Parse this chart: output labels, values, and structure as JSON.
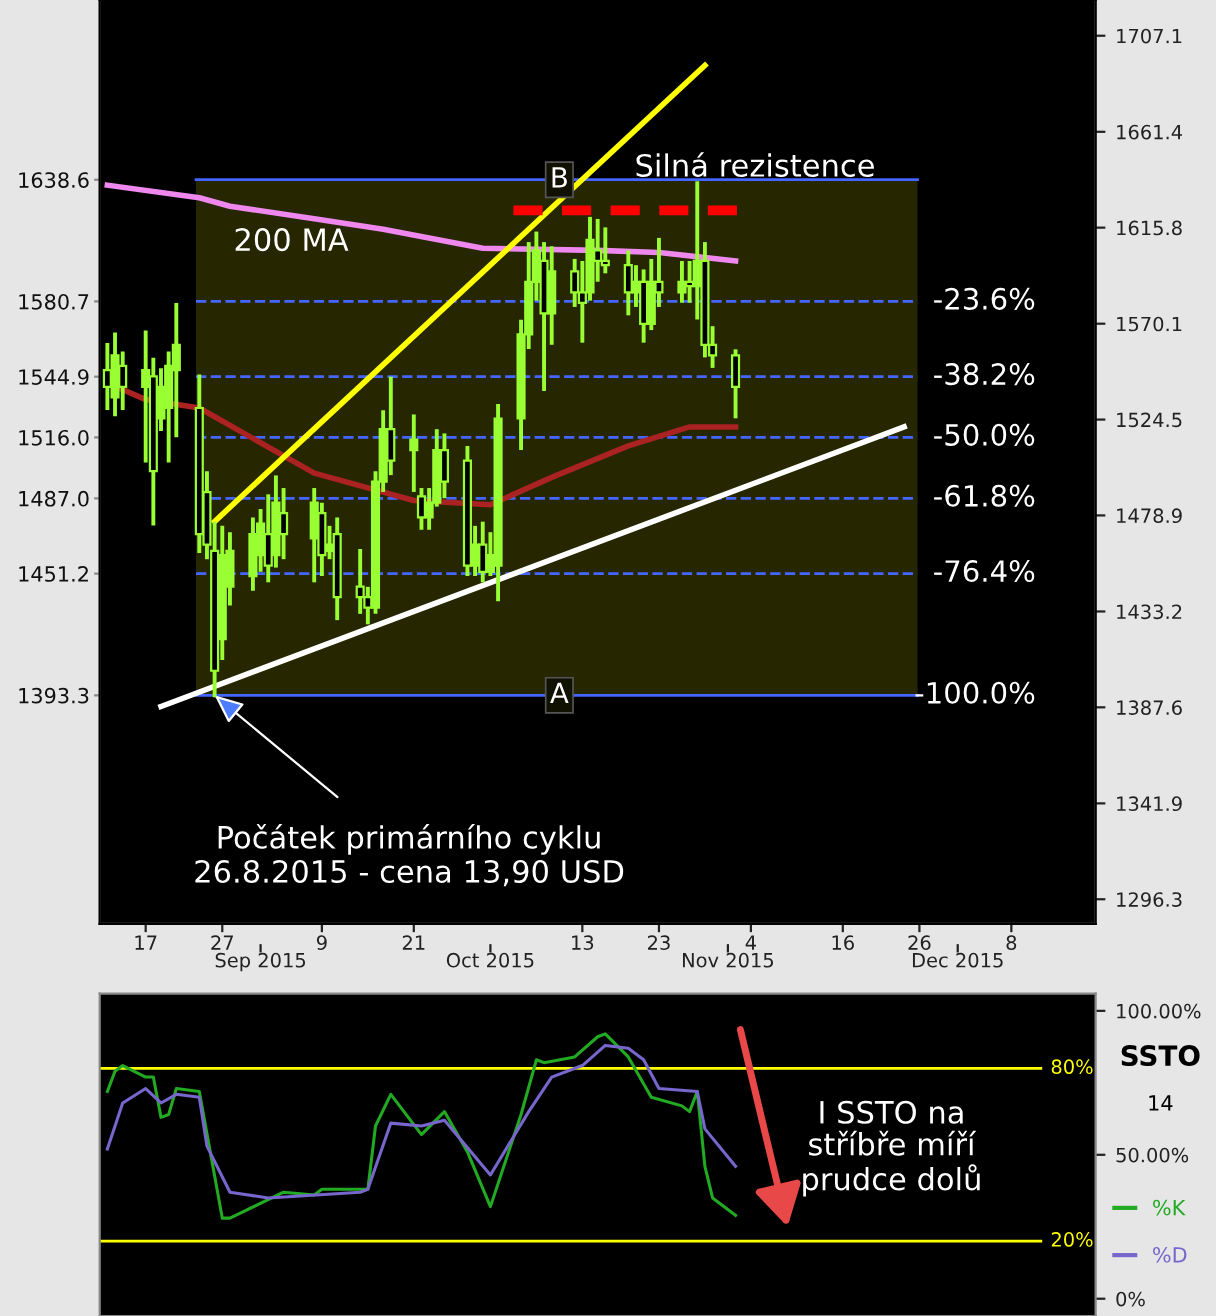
{
  "chart_data": [
    {
      "type": "candlestick",
      "color": "#99ff33",
      "x": [
        "2015-08-12",
        "2015-08-13",
        "2015-08-14",
        "2015-08-17",
        "2015-08-18",
        "2015-08-19",
        "2015-08-20",
        "2015-08-21",
        "2015-08-24",
        "2015-08-25",
        "2015-08-26",
        "2015-08-27",
        "2015-08-28",
        "2015-08-31",
        "2015-09-01",
        "2015-09-02",
        "2015-09-03",
        "2015-09-04",
        "2015-09-08",
        "2015-09-09",
        "2015-09-10",
        "2015-09-11",
        "2015-09-14",
        "2015-09-15",
        "2015-09-16",
        "2015-09-17",
        "2015-09-18",
        "2015-09-21",
        "2015-09-22",
        "2015-09-23",
        "2015-09-24",
        "2015-09-25",
        "2015-09-28",
        "2015-09-29",
        "2015-09-30",
        "2015-10-01",
        "2015-10-02",
        "2015-10-05",
        "2015-10-06",
        "2015-10-07",
        "2015-10-08",
        "2015-10-09",
        "2015-10-12",
        "2015-10-13",
        "2015-10-14",
        "2015-10-15",
        "2015-10-16",
        "2015-10-19",
        "2015-10-20",
        "2015-10-21",
        "2015-10-22",
        "2015-10-23",
        "2015-10-26",
        "2015-10-27",
        "2015-10-28",
        "2015-10-29",
        "2015-10-30",
        "2015-11-02"
      ],
      "ohlc": [
        [
          1548,
          1560,
          1530,
          1540
        ],
        [
          1535,
          1565,
          1527,
          1555
        ],
        [
          1550,
          1556,
          1530,
          1540
        ],
        [
          1540,
          1566,
          1505,
          1548
        ],
        [
          1545,
          1553,
          1475,
          1500
        ],
        [
          1525,
          1548,
          1520,
          1540
        ],
        [
          1530,
          1556,
          1505,
          1550
        ],
        [
          1548,
          1579,
          1517,
          1560
        ],
        [
          1530,
          1545,
          1462,
          1470
        ],
        [
          1490,
          1499,
          1459,
          1465
        ],
        [
          1462,
          1475,
          1393.3,
          1405
        ],
        [
          1420,
          1473,
          1411,
          1460
        ],
        [
          1445,
          1470,
          1437,
          1462
        ],
        [
          1450,
          1477,
          1444,
          1470
        ],
        [
          1460,
          1481,
          1453,
          1475
        ],
        [
          1470,
          1488,
          1448,
          1455
        ],
        [
          1460,
          1497,
          1455,
          1485
        ],
        [
          1480,
          1491,
          1459,
          1470
        ],
        [
          1468,
          1491,
          1448,
          1485
        ],
        [
          1480,
          1484,
          1451,
          1460
        ],
        [
          1462,
          1473,
          1459,
          1465
        ],
        [
          1470,
          1477,
          1430,
          1440
        ],
        [
          1445,
          1462,
          1433,
          1440
        ],
        [
          1440,
          1444,
          1428,
          1435
        ],
        [
          1435,
          1499,
          1433,
          1495
        ],
        [
          1495,
          1528,
          1491,
          1520
        ],
        [
          1520,
          1544,
          1499,
          1505
        ],
        [
          1510,
          1526,
          1491,
          1515
        ],
        [
          1488,
          1491,
          1473,
          1478
        ],
        [
          1478,
          1491,
          1473,
          1485
        ],
        [
          1485,
          1519,
          1484,
          1510
        ],
        [
          1510,
          1517,
          1488,
          1495
        ],
        [
          1505,
          1511,
          1451,
          1455
        ],
        [
          1455,
          1473,
          1451,
          1465
        ],
        [
          1465,
          1475,
          1448,
          1452
        ],
        [
          1452,
          1470,
          1451,
          1460
        ],
        [
          1455,
          1531,
          1439,
          1525
        ],
        [
          1525,
          1571,
          1511,
          1565
        ],
        [
          1565,
          1608,
          1559,
          1590
        ],
        [
          1590,
          1613,
          1582,
          1605
        ],
        [
          1600,
          1608,
          1539,
          1575
        ],
        [
          1575,
          1606,
          1561,
          1595
        ],
        [
          1595,
          1600,
          1579,
          1585
        ],
        [
          1585,
          1599,
          1562,
          1580
        ],
        [
          1585,
          1620,
          1582,
          1610
        ],
        [
          1605,
          1619,
          1591,
          1600
        ],
        [
          1600,
          1615,
          1595,
          1598
        ],
        [
          1598,
          1604,
          1575,
          1585
        ],
        [
          1585,
          1597,
          1579,
          1590
        ],
        [
          1590,
          1595,
          1562,
          1570
        ],
        [
          1570,
          1600,
          1568,
          1590
        ],
        [
          1590,
          1610,
          1579,
          1585
        ],
        [
          1585,
          1599,
          1581,
          1590
        ],
        [
          1590,
          1599,
          1581,
          1588
        ],
        [
          1588,
          1637,
          1573,
          1600
        ],
        [
          1600,
          1608,
          1555,
          1560
        ],
        [
          1560,
          1568,
          1550,
          1555
        ],
        [
          1555,
          1557,
          1526,
          1540
        ]
      ],
      "series": [
        {
          "name": "200 MA",
          "type": "line",
          "color": "#ee88ee",
          "x": [
            "2015-08-12",
            "2015-08-24",
            "2015-08-28",
            "2015-09-08",
            "2015-09-17",
            "2015-09-30",
            "2015-10-15",
            "2015-10-23",
            "2015-11-02"
          ],
          "values": [
            1636,
            1630,
            1626,
            1620,
            1615,
            1606,
            1605,
            1604,
            1600
          ]
        },
        {
          "type": "line",
          "color": "#aa2222",
          "x": [
            "2015-08-12",
            "2015-08-17",
            "2015-08-24",
            "2015-09-08",
            "2015-09-21",
            "2015-10-01",
            "2015-10-09",
            "2015-10-19",
            "2015-10-27",
            "2015-11-02"
          ],
          "values": [
            1542,
            1534,
            1530,
            1499,
            1486,
            1484,
            1497,
            1512,
            1521,
            1521
          ]
        },
        {
          "type": "line",
          "color": "#ffff00",
          "x": [
            "2015-08-26",
            "2015-10-29"
          ],
          "values": [
            1476,
            1693
          ]
        },
        {
          "type": "line",
          "color": "#ffffff",
          "x": [
            "2015-08-19",
            "2015-11-24"
          ],
          "values": [
            1388,
            1521
          ]
        },
        {
          "type": "line",
          "color": "#ff0000",
          "line_style": "dashed",
          "x": [
            "2015-10-04",
            "2015-11-03"
          ],
          "values": [
            1624,
            1624
          ]
        }
      ],
      "xlim": [
        "2015-08-11",
        "2015-12-19"
      ],
      "xticks": [
        {
          "value": "2015-08-17",
          "label": "17"
        },
        {
          "value": "2015-08-27",
          "label": "27"
        },
        {
          "value": "2015-09-09",
          "label": "9"
        },
        {
          "value": "2015-09-21",
          "label": "21"
        },
        {
          "value": "2015-10-13",
          "label": "13"
        },
        {
          "value": "2015-10-23",
          "label": "23"
        },
        {
          "value": "2015-11-04",
          "label": "4"
        },
        {
          "value": "2015-11-16",
          "label": "16"
        },
        {
          "value": "2015-11-26",
          "label": "26"
        },
        {
          "value": "2015-12-08",
          "label": "8"
        }
      ],
      "x2lim": [
        "2015-08-11",
        "2015-12-19"
      ],
      "x2ticks": [
        {
          "value": "2015-09-01",
          "label": "Sep 2015"
        },
        {
          "value": "2015-10-01",
          "label": "Oct 2015"
        },
        {
          "value": "2015-11-01",
          "label": "Nov 2015"
        },
        {
          "value": "2015-12-01",
          "label": "Dec 2015"
        }
      ],
      "ylim": [
        1284.6,
        1724.1
      ],
      "yticks": [
        {
          "value": 1393.3,
          "label": "1393.3"
        },
        {
          "value": 1451.2,
          "label": "1451.2"
        },
        {
          "value": 1487.0,
          "label": "1487.0"
        },
        {
          "value": 1516.0,
          "label": "1516.0"
        },
        {
          "value": 1544.9,
          "label": "1544.9"
        },
        {
          "value": 1580.7,
          "label": "1580.7"
        },
        {
          "value": 1638.6,
          "label": "1638.6"
        }
      ],
      "y2lim": [
        1284.6,
        1724.1
      ],
      "y2ticks": [
        1296.3,
        1341.9,
        1387.6,
        1433.2,
        1478.9,
        1524.5,
        1570.1,
        1615.8,
        1661.4,
        1707.1
      ],
      "bands": [
        {
          "axis": "y",
          "from": 1393.3,
          "to": 1638.6,
          "color": "#262600"
        }
      ],
      "ref_lines": [
        {
          "axis": "y",
          "value": 1638.6,
          "color": "#4466ff",
          "line_style": "solid"
        },
        {
          "axis": "y",
          "value": 1580.7,
          "color": "#4466ff",
          "line_style": "dashed"
        },
        {
          "axis": "y",
          "value": 1544.9,
          "color": "#4466ff",
          "line_style": "dashed"
        },
        {
          "axis": "y",
          "value": 1516.0,
          "color": "#4466ff",
          "line_style": "dashed"
        },
        {
          "axis": "y",
          "value": 1487.0,
          "color": "#4466ff",
          "line_style": "dashed"
        },
        {
          "axis": "y",
          "value": 1451.2,
          "color": "#4466ff",
          "line_style": "dashed"
        },
        {
          "axis": "y",
          "value": 1393.3,
          "color": "#4466ff",
          "line_style": "solid"
        }
      ],
      "annotations": [
        {
          "text": "B",
          "x": "2015-10-10",
          "y": 1638.6
        },
        {
          "text": "A",
          "x": "2015-10-10",
          "y": 1393.3
        },
        {
          "text": "Počátek primárního cyklu\n26.8.2015 - cena 13,90 USD",
          "x": "2015-08-26",
          "y": 1393.3
        },
        "-23.6%",
        "-38.2%",
        "-50.0%",
        "-61.8%",
        "-76.4%",
        "-100.0%",
        "Silná rezistence"
      ]
    },
    {
      "type": "line",
      "title": "SSTO",
      "subtitle": "14",
      "legend": "right",
      "tick_labels": "y",
      "series": [
        {
          "name": "%K",
          "color": "#22aa22",
          "x": [
            "2015-08-12",
            "2015-08-13",
            "2015-08-14",
            "2015-08-17",
            "2015-08-18",
            "2015-08-19",
            "2015-08-20",
            "2015-08-21",
            "2015-08-24",
            "2015-08-27",
            "2015-08-28",
            "2015-09-04",
            "2015-09-08",
            "2015-09-09",
            "2015-09-14",
            "2015-09-15",
            "2015-09-16",
            "2015-09-18",
            "2015-09-22",
            "2015-09-25",
            "2015-09-28",
            "2015-10-01",
            "2015-10-05",
            "2015-10-07",
            "2015-10-08",
            "2015-10-12",
            "2015-10-15",
            "2015-10-16",
            "2015-10-19",
            "2015-10-22",
            "2015-10-26",
            "2015-10-27",
            "2015-10-28",
            "2015-10-29",
            "2015-10-30",
            "2015-11-02"
          ],
          "values": [
            72,
            79,
            81,
            77,
            77,
            63,
            64,
            73,
            72,
            28,
            28,
            37,
            36,
            38,
            38,
            38,
            60,
            71,
            57,
            65,
            51,
            32,
            64,
            83,
            82,
            84,
            91,
            92,
            84,
            70,
            67,
            65,
            72,
            46,
            35,
            29
          ]
        },
        {
          "name": "%D",
          "color": "#7766cc",
          "x": [
            "2015-08-12",
            "2015-08-14",
            "2015-08-17",
            "2015-08-19",
            "2015-08-21",
            "2015-08-24",
            "2015-08-25",
            "2015-08-28",
            "2015-09-02",
            "2015-09-14",
            "2015-09-15",
            "2015-09-18",
            "2015-09-22",
            "2015-09-25",
            "2015-10-01",
            "2015-10-06",
            "2015-10-09",
            "2015-10-13",
            "2015-10-16",
            "2015-10-19",
            "2015-10-21",
            "2015-10-23",
            "2015-10-28",
            "2015-10-29",
            "2015-11-02"
          ],
          "values": [
            52,
            68,
            73,
            68,
            71,
            70,
            53,
            37,
            35,
            37,
            38,
            61,
            60,
            62,
            43,
            65,
            77,
            81,
            88,
            87,
            83,
            73,
            72,
            59,
            46
          ]
        }
      ],
      "xlim": [
        "2015-08-11",
        "2015-12-19"
      ],
      "ylim": [
        -6,
        106
      ],
      "yticks": [
        {
          "value": 0,
          "label": "0%"
        },
        {
          "value": 50,
          "label": "50.00%"
        },
        {
          "value": 100,
          "label": "100.00%"
        }
      ],
      "ref_lines": [
        {
          "axis": "y",
          "value": 80,
          "label": "80%",
          "color": "#ffff00",
          "line_style": "solid"
        },
        {
          "axis": "y",
          "value": 20,
          "label": "20%",
          "color": "#ffff00",
          "line_style": "solid"
        }
      ],
      "annotations": [
        "I SSTO na\nstříbře míří\nprudce dolů"
      ]
    }
  ]
}
